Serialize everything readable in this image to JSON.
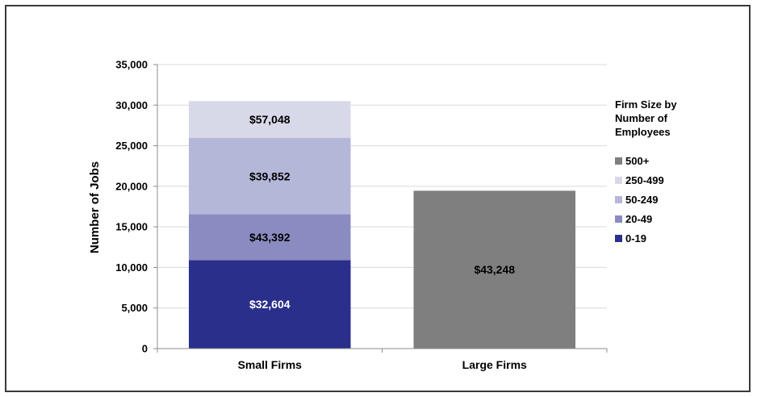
{
  "chart_data": {
    "type": "bar",
    "stacked": true,
    "ylabel": "Number of Jobs",
    "ylim": [
      0,
      35000
    ],
    "yticks": [
      0,
      5000,
      10000,
      15000,
      20000,
      25000,
      30000,
      35000
    ],
    "ytick_labels": [
      "0",
      "5,000",
      "10,000",
      "15,000",
      "20,000",
      "25,000",
      "30,000",
      "35,000"
    ],
    "grid": true,
    "categories": [
      "Small Firms",
      "Large Firms"
    ],
    "series": [
      {
        "name": "0-19",
        "color": "#2a2f8c",
        "label_color": "#ffffff",
        "values": [
          10900,
          0
        ],
        "labels": [
          "$32,604",
          ""
        ]
      },
      {
        "name": "20-49",
        "color": "#8a8cc1",
        "label_color": "#000000",
        "values": [
          5650,
          0
        ],
        "labels": [
          "$43,392",
          ""
        ]
      },
      {
        "name": "50-249",
        "color": "#b4b7d8",
        "label_color": "#000000",
        "values": [
          9400,
          0
        ],
        "labels": [
          "$39,852",
          ""
        ]
      },
      {
        "name": "250-499",
        "color": "#d8d9e8",
        "label_color": "#000000",
        "values": [
          4550,
          0
        ],
        "labels": [
          "$57,048",
          ""
        ]
      },
      {
        "name": "500+",
        "color": "#7f7f7f",
        "label_color": "#000000",
        "values": [
          0,
          19450
        ],
        "labels": [
          "",
          "$43,248"
        ]
      }
    ],
    "legend": {
      "title": "Firm Size by\nNumber of\nEmployees",
      "position": "right",
      "order": [
        "500+",
        "250-499",
        "50-249",
        "20-49",
        "0-19"
      ]
    }
  }
}
